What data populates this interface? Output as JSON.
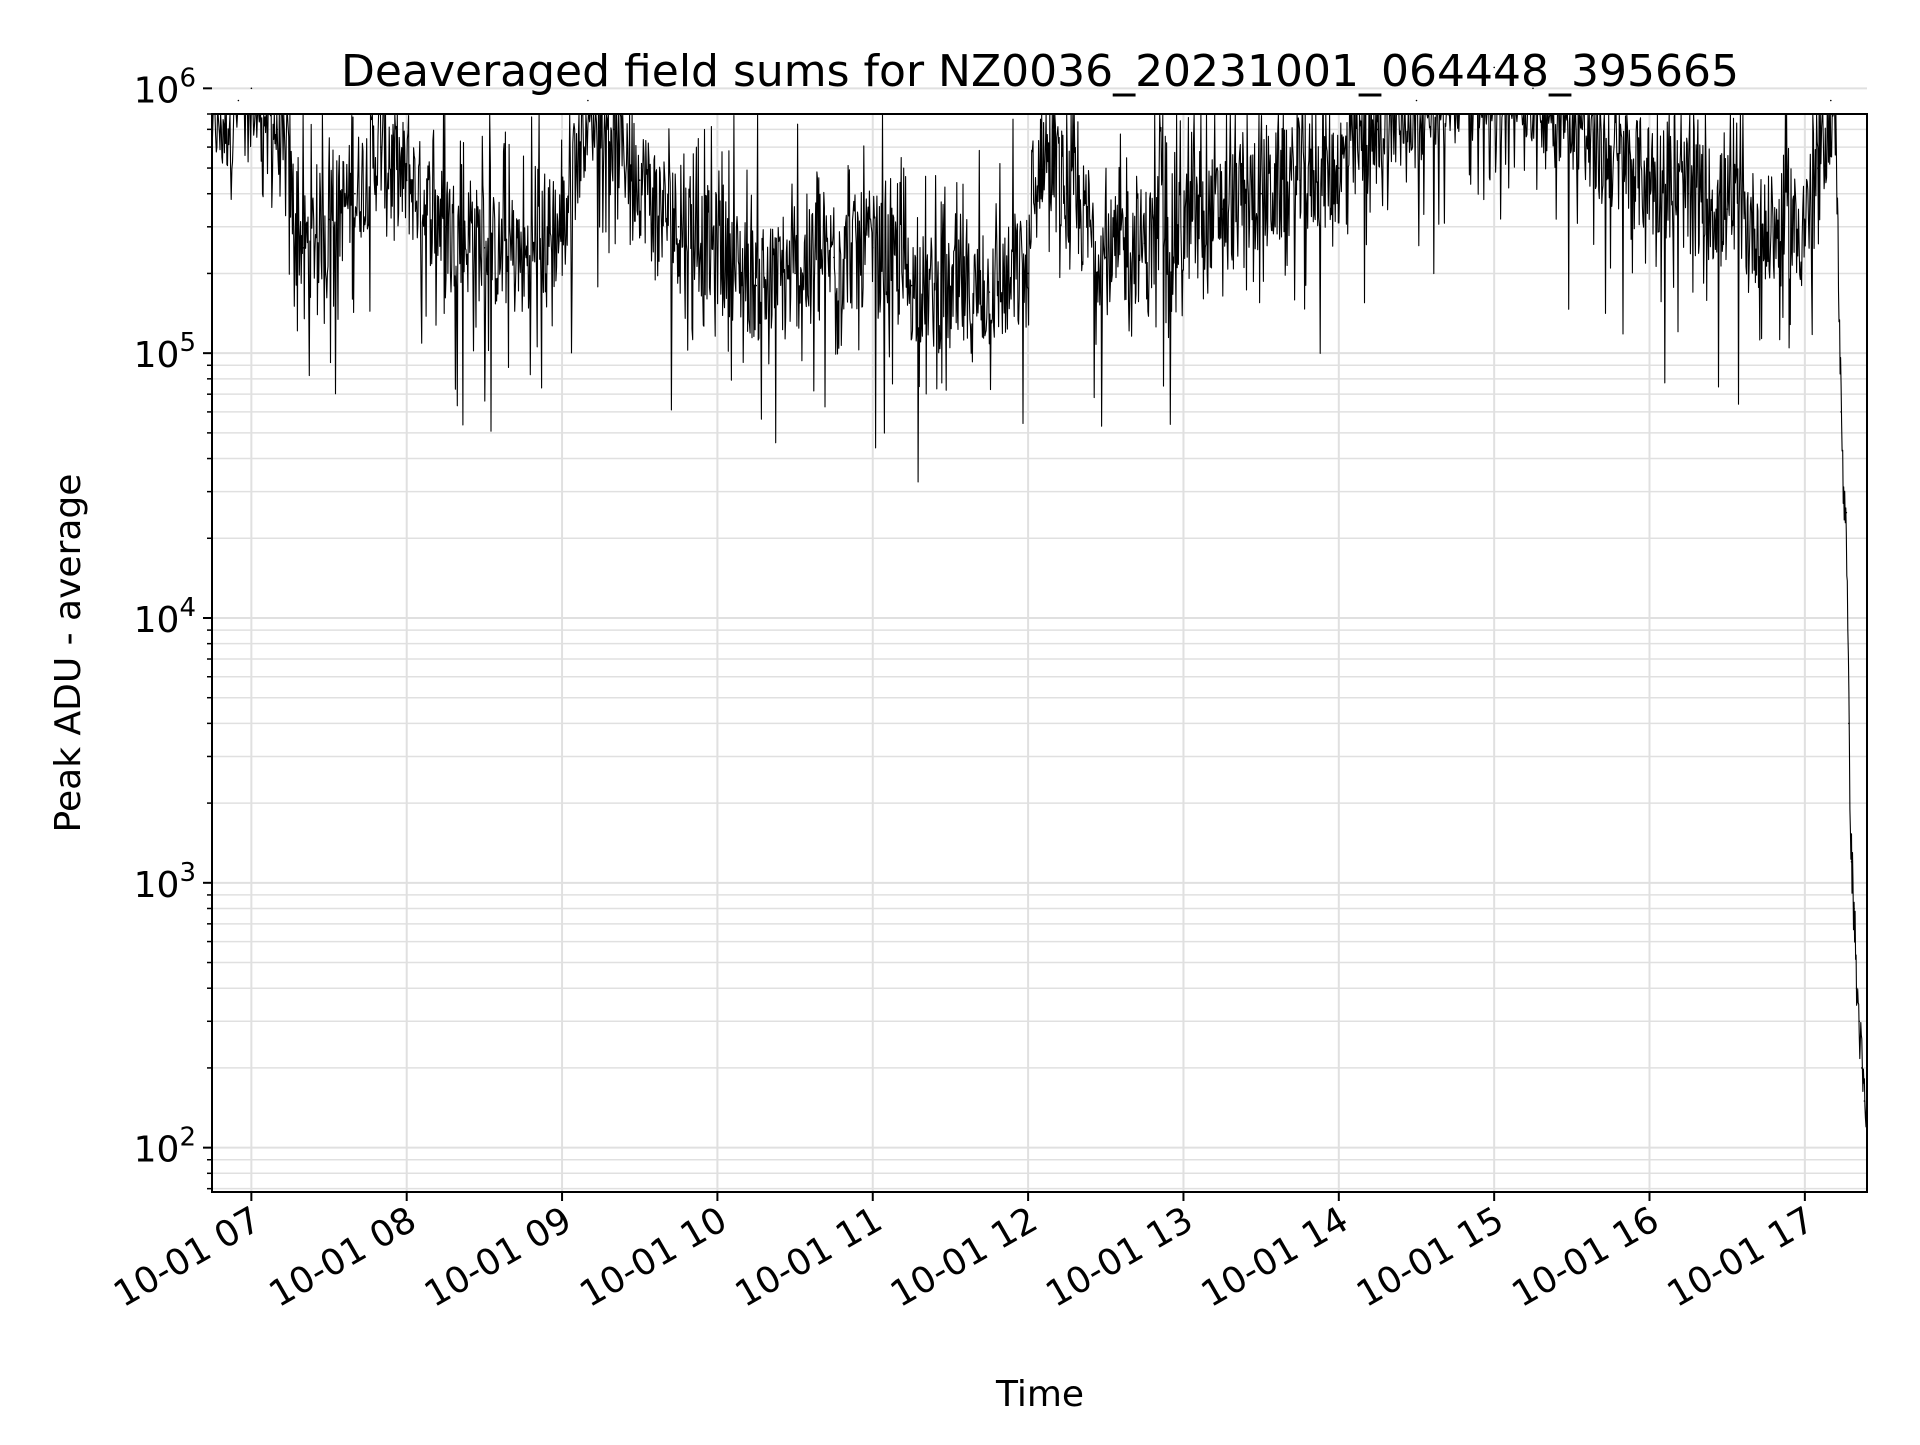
{
  "chart_data": {
    "type": "line",
    "title": "Deaveraged field sums for NZ0036_20231001_064448_395665",
    "xlabel": "Time",
    "ylabel": "Peak ADU - average",
    "yscale": "log",
    "ylim": [
      68,
      800000
    ],
    "xlim": [
      "2023-10-01 06:44:48",
      "2023-10-01 17:24:00"
    ],
    "grid": true,
    "grid_minor": true,
    "x_tick_labels": [
      "10-01 07",
      "10-01 08",
      "10-01 09",
      "10-01 10",
      "10-01 11",
      "10-01 12",
      "10-01 13",
      "10-01 14",
      "10-01 15",
      "10-01 16",
      "10-01 17"
    ],
    "x_tick_values": [
      "2023-10-01 07:00",
      "2023-10-01 08:00",
      "2023-10-01 09:00",
      "2023-10-01 10:00",
      "2023-10-01 11:00",
      "2023-10-01 12:00",
      "2023-10-01 13:00",
      "2023-10-01 14:00",
      "2023-10-01 15:00",
      "2023-10-01 16:00",
      "2023-10-01 17:00"
    ],
    "y_tick_labels": [
      {
        "base": "10",
        "exp": "2"
      },
      {
        "base": "10",
        "exp": "3"
      },
      {
        "base": "10",
        "exp": "4"
      },
      {
        "base": "10",
        "exp": "5"
      },
      {
        "base": "10",
        "exp": "6"
      }
    ],
    "y_tick_values": [
      100,
      1000,
      10000,
      100000,
      1000000
    ],
    "line_color": "#000000",
    "grid_color": "#e0e0e0",
    "series": [
      {
        "x": [
          "2023-10-01 06:45",
          "2023-10-01 06:50",
          "2023-10-01 06:55",
          "2023-10-01 07:00",
          "2023-10-01 07:10",
          "2023-10-01 07:20",
          "2023-10-01 07:30",
          "2023-10-01 07:40",
          "2023-10-01 07:50",
          "2023-10-01 08:00",
          "2023-10-01 08:15",
          "2023-10-01 08:30",
          "2023-10-01 08:45",
          "2023-10-01 09:00",
          "2023-10-01 09:10",
          "2023-10-01 09:20",
          "2023-10-01 09:30",
          "2023-10-01 09:45",
          "2023-10-01 10:00",
          "2023-10-01 10:15",
          "2023-10-01 10:30",
          "2023-10-01 10:45",
          "2023-10-01 11:00",
          "2023-10-01 11:15",
          "2023-10-01 11:30",
          "2023-10-01 11:45",
          "2023-10-01 12:00",
          "2023-10-01 12:05",
          "2023-10-01 12:15",
          "2023-10-01 12:30",
          "2023-10-01 12:45",
          "2023-10-01 13:00",
          "2023-10-01 13:15",
          "2023-10-01 13:30",
          "2023-10-01 13:45",
          "2023-10-01 14:00",
          "2023-10-01 14:15",
          "2023-10-01 14:30",
          "2023-10-01 14:45",
          "2023-10-01 15:00",
          "2023-10-01 15:15",
          "2023-10-01 15:30",
          "2023-10-01 15:45",
          "2023-10-01 16:00",
          "2023-10-01 16:15",
          "2023-10-01 16:30",
          "2023-10-01 16:45",
          "2023-10-01 17:00",
          "2023-10-01 17:05",
          "2023-10-01 17:10",
          "2023-10-01 17:12",
          "2023-10-01 17:14",
          "2023-10-01 17:15",
          "2023-10-01 17:16",
          "2023-10-01 17:17",
          "2023-10-01 17:18",
          "2023-10-01 17:19",
          "2023-10-01 17:20",
          "2023-10-01 17:21",
          "2023-10-01 17:22",
          "2023-10-01 17:23",
          "2023-10-01 17:24"
        ],
        "y": [
          800000,
          750000,
          900000,
          1000000,
          700000,
          250000,
          320000,
          400000,
          600000,
          450000,
          300000,
          250000,
          220000,
          300000,
          900000,
          700000,
          450000,
          300000,
          250000,
          180000,
          200000,
          230000,
          250000,
          180000,
          160000,
          170000,
          200000,
          600000,
          400000,
          230000,
          260000,
          300000,
          350000,
          400000,
          450000,
          500000,
          700000,
          900000,
          1100000,
          1200000,
          1000000,
          800000,
          550000,
          450000,
          400000,
          350000,
          280000,
          300000,
          500000,
          900000,
          700000,
          60000,
          30000,
          25000,
          4000,
          1200,
          800,
          400,
          300,
          200,
          150,
          120
        ]
      }
    ]
  }
}
